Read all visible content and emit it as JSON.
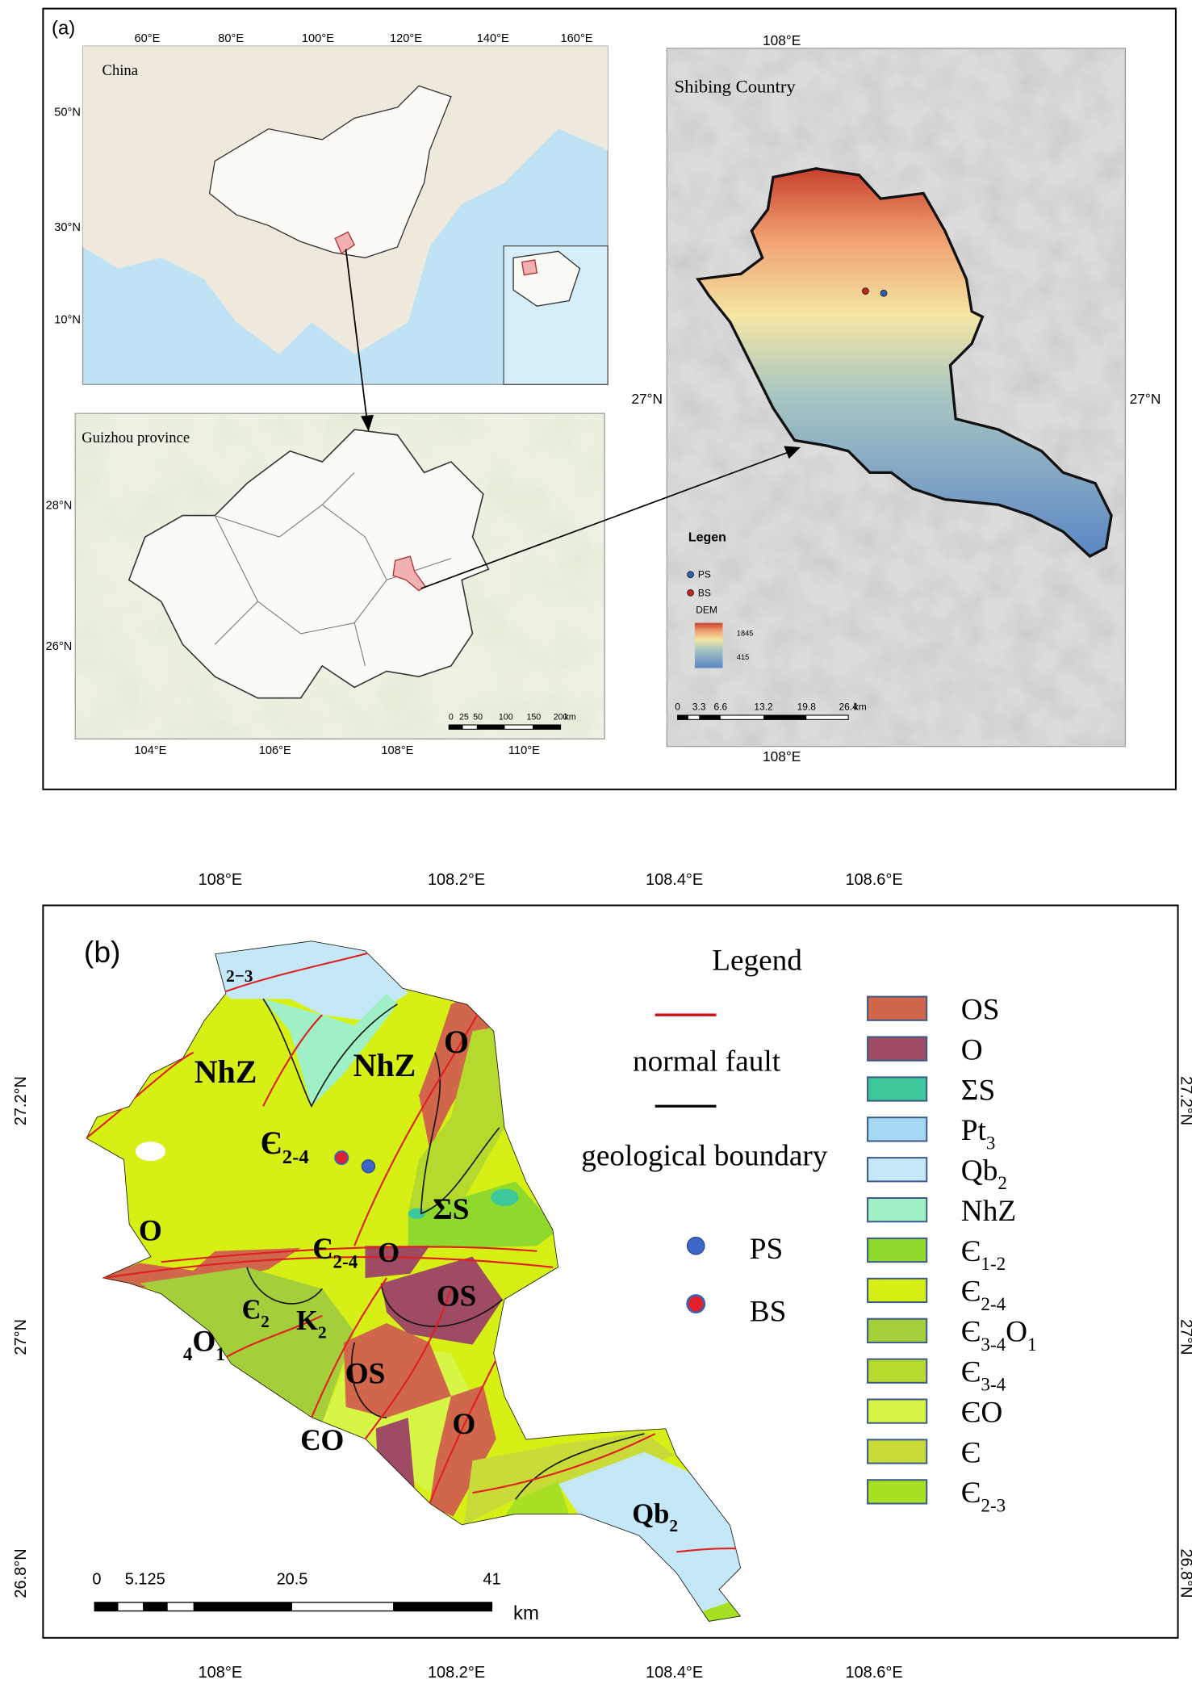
{
  "panel_a": {
    "label": "(a)",
    "china": {
      "title": "China",
      "x_ticks": [
        "60°E",
        "80°E",
        "100°E",
        "120°E",
        "140°E",
        "160°E"
      ],
      "y_ticks": [
        "50°N",
        "30°N",
        "10°N"
      ]
    },
    "guizhou": {
      "title": "Guizhou province",
      "y_ticks": [
        "28°N",
        "26°N"
      ],
      "x_ticks": [
        "104°E",
        "106°E",
        "108°E",
        "110°E"
      ],
      "scale_labels": [
        "0",
        "25",
        "50",
        "100",
        "150",
        "200",
        "km"
      ]
    },
    "shibing": {
      "title": "Shibing Country",
      "x_tick_top": "108°E",
      "x_tick_bottom": "108°E",
      "y_tick_left": "27°N",
      "y_tick_right": "27°N",
      "legend": {
        "title": "Legen",
        "items": [
          "PS",
          "BS"
        ],
        "dem_label": "DEM",
        "dem_max": "1845",
        "dem_min": "415"
      },
      "scale_labels": [
        "0",
        "3.3",
        "6.6",
        "13.2",
        "19.8",
        "26.4",
        "km"
      ]
    }
  },
  "panel_b": {
    "label": "(b)",
    "x_ticks": [
      "108°E",
      "108.2°E",
      "108.4°E",
      "108.6°E"
    ],
    "y_ticks": [
      "27.2°N",
      "27°N",
      "26.8°N"
    ],
    "legend": {
      "title": "Legend",
      "lines": [
        "normal fault",
        "geological boundary"
      ],
      "points": [
        "PS",
        "BS"
      ]
    },
    "units": [
      {
        "label": "OS",
        "color": "#d0664a"
      },
      {
        "label": "O",
        "color": "#9e4b63"
      },
      {
        "label": "ΣS",
        "color": "#3cc89a"
      },
      {
        "label": [
          {
            "text": "Pt"
          },
          {
            "text": "3",
            "sub": true
          }
        ],
        "color": "#a6d8f4"
      },
      {
        "label": [
          {
            "text": "Qb"
          },
          {
            "text": "2",
            "sub": true
          }
        ],
        "color": "#c4e8f8"
      },
      {
        "label": "NhZ",
        "color": "#9ff0c6"
      },
      {
        "label": [
          {
            "text": "Є"
          },
          {
            "text": "1-2",
            "sub": true
          }
        ],
        "color": "#8fd82c"
      },
      {
        "label": [
          {
            "text": "Є"
          },
          {
            "text": "2-4",
            "sub": true
          }
        ],
        "color": "#d6f016"
      },
      {
        "label": [
          {
            "text": "Є"
          },
          {
            "text": "3-4",
            "sub": true
          },
          {
            "text": "O"
          },
          {
            "text": "1",
            "sub": true
          }
        ],
        "color": "#a5cf3a"
      },
      {
        "label": [
          {
            "text": "Є"
          },
          {
            "text": "3-4",
            "sub": true
          }
        ],
        "color": "#b5d92c"
      },
      {
        "label": "ЄO",
        "color": "#d6f545"
      },
      {
        "label": "Є",
        "color": "#c8db38"
      },
      {
        "label": [
          {
            "text": "Є"
          },
          {
            "text": "2-3",
            "sub": true
          }
        ],
        "color": "#a8e024"
      }
    ],
    "map_labels": [
      "2−3",
      "NhZ",
      "NhZ",
      [
        {
          "text": "Є"
        },
        {
          "text": "2-4",
          "sub": true
        }
      ],
      "O",
      "O",
      "ΣS",
      [
        {
          "text": "Є"
        },
        {
          "text": "2-4",
          "sub": true
        }
      ],
      "O",
      "OS",
      [
        {
          "text": "Є"
        },
        {
          "text": "2",
          "sub": true
        }
      ],
      [
        {
          "text": "K"
        },
        {
          "text": "2",
          "sub": true
        }
      ],
      [
        {
          "text": "4",
          "sub": true
        },
        {
          "text": "O"
        },
        {
          "text": "1",
          "sub": true
        }
      ],
      "OS",
      "ЄO",
      "O",
      [
        {
          "text": "Qb"
        },
        {
          "text": "2",
          "sub": true
        }
      ]
    ],
    "scale_labels": [
      "0",
      "5.125",
      "20.5",
      "41",
      "km"
    ]
  }
}
